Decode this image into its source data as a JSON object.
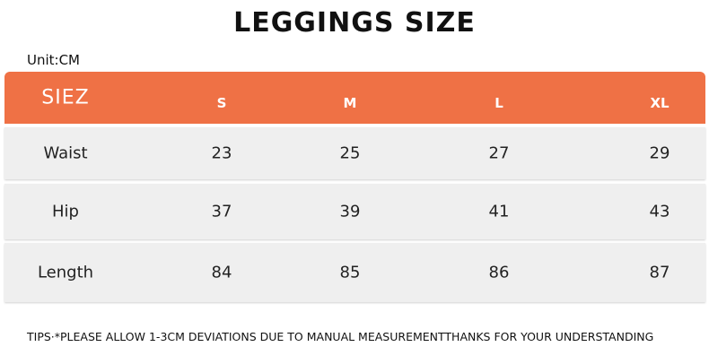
{
  "header": {
    "title": "LEGGINGS SIZE",
    "unit": "Unit:CM"
  },
  "table": {
    "columns": [
      "SIEZ",
      "S",
      "M",
      "L",
      "XL"
    ],
    "rows": [
      [
        "Waist",
        23,
        25,
        27,
        29
      ],
      [
        "Hip",
        37,
        39,
        41,
        43
      ],
      [
        "Length",
        84,
        85,
        86,
        87
      ]
    ]
  },
  "footer": {
    "tips": "TIPS·*PLEASE ALLOW 1-3CM DEVIATIONS DUE TO MANUAL MEASUREMENTTHANKS FOR YOUR UNDERSTANDING"
  }
}
